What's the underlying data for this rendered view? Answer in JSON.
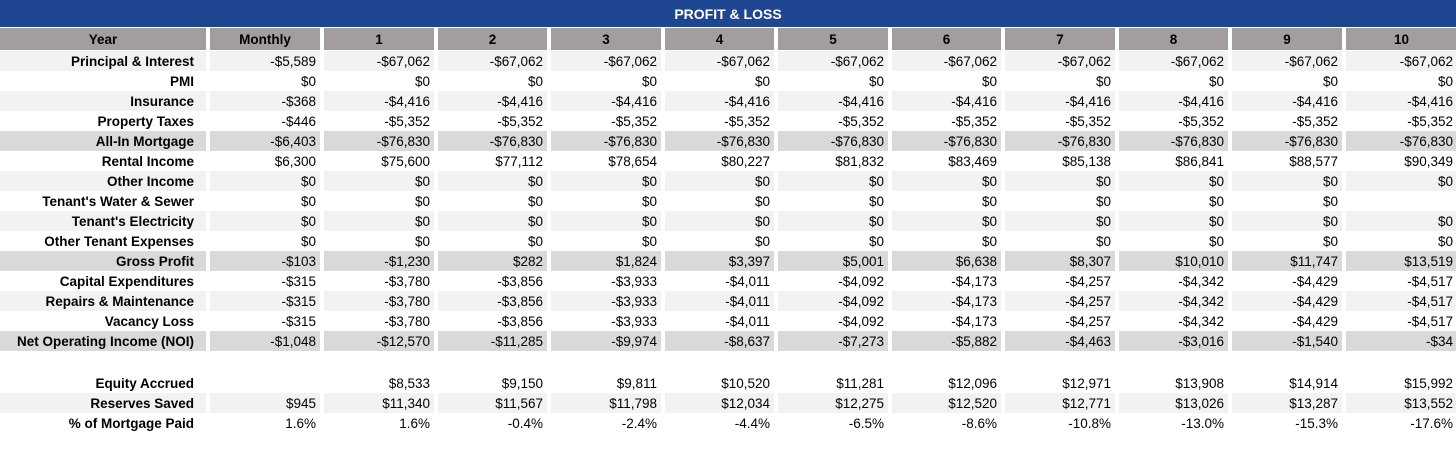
{
  "title": "PROFIT & LOSS",
  "colors": {
    "title_bg": "#1f4690",
    "header_bg": "#a39d9d",
    "band_light": "#f2f2f2",
    "band_summary": "#d9d9d9"
  },
  "header": [
    "Year",
    "Monthly",
    "1",
    "2",
    "3",
    "4",
    "5",
    "6",
    "7",
    "8",
    "9",
    "10"
  ],
  "rows": [
    {
      "label": "Principal & Interest",
      "style": "alt",
      "values": [
        "-$5,589",
        "-$67,062",
        "-$67,062",
        "-$67,062",
        "-$67,062",
        "-$67,062",
        "-$67,062",
        "-$67,062",
        "-$67,062",
        "-$67,062",
        "-$67,062"
      ]
    },
    {
      "label": "PMI",
      "style": "plain",
      "values": [
        "$0",
        "$0",
        "$0",
        "$0",
        "$0",
        "$0",
        "$0",
        "$0",
        "$0",
        "$0",
        "$0"
      ]
    },
    {
      "label": "Insurance",
      "style": "alt",
      "values": [
        "-$368",
        "-$4,416",
        "-$4,416",
        "-$4,416",
        "-$4,416",
        "-$4,416",
        "-$4,416",
        "-$4,416",
        "-$4,416",
        "-$4,416",
        "-$4,416"
      ]
    },
    {
      "label": "Property Taxes",
      "style": "plain",
      "values": [
        "-$446",
        "-$5,352",
        "-$5,352",
        "-$5,352",
        "-$5,352",
        "-$5,352",
        "-$5,352",
        "-$5,352",
        "-$5,352",
        "-$5,352",
        "-$5,352"
      ]
    },
    {
      "label": "All-In Mortgage",
      "style": "sum",
      "values": [
        "-$6,403",
        "-$76,830",
        "-$76,830",
        "-$76,830",
        "-$76,830",
        "-$76,830",
        "-$76,830",
        "-$76,830",
        "-$76,830",
        "-$76,830",
        "-$76,830"
      ]
    },
    {
      "label": "Rental Income",
      "style": "plain",
      "values": [
        "$6,300",
        "$75,600",
        "$77,112",
        "$78,654",
        "$80,227",
        "$81,832",
        "$83,469",
        "$85,138",
        "$86,841",
        "$88,577",
        "$90,349"
      ]
    },
    {
      "label": "Other Income",
      "style": "alt",
      "values": [
        "$0",
        "$0",
        "$0",
        "$0",
        "$0",
        "$0",
        "$0",
        "$0",
        "$0",
        "$0",
        "$0"
      ]
    },
    {
      "label": "Tenant's Water & Sewer",
      "style": "plain",
      "values": [
        "$0",
        "$0",
        "$0",
        "$0",
        "$0",
        "$0",
        "$0",
        "$0",
        "$0",
        "$0",
        ""
      ]
    },
    {
      "label": "Tenant's Electricity",
      "style": "alt",
      "values": [
        "$0",
        "$0",
        "$0",
        "$0",
        "$0",
        "$0",
        "$0",
        "$0",
        "$0",
        "$0",
        "$0"
      ]
    },
    {
      "label": "Other Tenant Expenses",
      "style": "plain",
      "values": [
        "$0",
        "$0",
        "$0",
        "$0",
        "$0",
        "$0",
        "$0",
        "$0",
        "$0",
        "$0",
        "$0"
      ]
    },
    {
      "label": "Gross Profit",
      "style": "sum",
      "values": [
        "-$103",
        "-$1,230",
        "$282",
        "$1,824",
        "$3,397",
        "$5,001",
        "$6,638",
        "$8,307",
        "$10,010",
        "$11,747",
        "$13,519"
      ]
    },
    {
      "label": "Capital Expenditures",
      "style": "plain",
      "values": [
        "-$315",
        "-$3,780",
        "-$3,856",
        "-$3,933",
        "-$4,011",
        "-$4,092",
        "-$4,173",
        "-$4,257",
        "-$4,342",
        "-$4,429",
        "-$4,517"
      ]
    },
    {
      "label": "Repairs & Maintenance",
      "style": "alt",
      "values": [
        "-$315",
        "-$3,780",
        "-$3,856",
        "-$3,933",
        "-$4,011",
        "-$4,092",
        "-$4,173",
        "-$4,257",
        "-$4,342",
        "-$4,429",
        "-$4,517"
      ]
    },
    {
      "label": "Vacancy Loss",
      "style": "plain",
      "values": [
        "-$315",
        "-$3,780",
        "-$3,856",
        "-$3,933",
        "-$4,011",
        "-$4,092",
        "-$4,173",
        "-$4,257",
        "-$4,342",
        "-$4,429",
        "-$4,517"
      ]
    },
    {
      "label": "Net Operating Income (NOI)",
      "style": "sum",
      "values": [
        "-$1,048",
        "-$12,570",
        "-$11,285",
        "-$9,974",
        "-$8,637",
        "-$7,273",
        "-$5,882",
        "-$4,463",
        "-$3,016",
        "-$1,540",
        "-$34"
      ]
    },
    {
      "label": "",
      "style": "blank",
      "values": [
        "",
        "",
        "",
        "",
        "",
        "",
        "",
        "",
        "",
        "",
        ""
      ]
    },
    {
      "label": "Equity Accrued",
      "style": "plain",
      "values": [
        "",
        "$8,533",
        "$9,150",
        "$9,811",
        "$10,520",
        "$11,281",
        "$12,096",
        "$12,971",
        "$13,908",
        "$14,914",
        "$15,992"
      ]
    },
    {
      "label": "Reserves Saved",
      "style": "alt",
      "values": [
        "$945",
        "$11,340",
        "$11,567",
        "$11,798",
        "$12,034",
        "$12,275",
        "$12,520",
        "$12,771",
        "$13,026",
        "$13,287",
        "$13,552"
      ]
    },
    {
      "label": "% of Mortgage Paid",
      "style": "plain",
      "values": [
        "1.6%",
        "1.6%",
        "-0.4%",
        "-2.4%",
        "-4.4%",
        "-6.5%",
        "-8.6%",
        "-10.8%",
        "-13.0%",
        "-15.3%",
        "-17.6%"
      ]
    }
  ]
}
